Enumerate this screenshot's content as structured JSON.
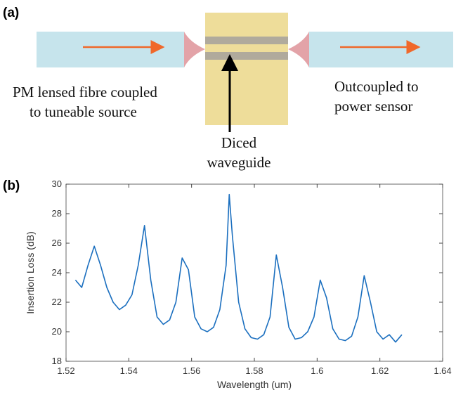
{
  "diagram": {
    "panel_label": "(a)",
    "source_label": [
      "PM lensed fibre coupled",
      "to tuneable source"
    ],
    "sensor_label": [
      "Outcoupled to",
      "power sensor"
    ],
    "waveguide_label": [
      "Diced",
      "waveguide"
    ]
  },
  "chart_data": {
    "type": "line",
    "panel_label": "(b)",
    "x_label": "Wavelength (um)",
    "y_label": "Insertion Loss (dB)",
    "xlim": [
      1.52,
      1.64
    ],
    "xticks": [
      1.52,
      1.54,
      1.56,
      1.58,
      1.6,
      1.62,
      1.64
    ],
    "ylim": [
      18,
      30
    ],
    "yticks": [
      18,
      20,
      22,
      24,
      26,
      28,
      30
    ],
    "color": "#1b6fbf",
    "x": [
      1.523,
      1.525,
      1.527,
      1.529,
      1.531,
      1.533,
      1.535,
      1.537,
      1.539,
      1.541,
      1.543,
      1.545,
      1.547,
      1.549,
      1.551,
      1.553,
      1.555,
      1.557,
      1.559,
      1.561,
      1.563,
      1.565,
      1.567,
      1.569,
      1.571,
      1.572,
      1.573,
      1.575,
      1.577,
      1.579,
      1.581,
      1.583,
      1.585,
      1.587,
      1.589,
      1.591,
      1.593,
      1.595,
      1.597,
      1.599,
      1.601,
      1.603,
      1.605,
      1.607,
      1.609,
      1.611,
      1.613,
      1.615,
      1.617,
      1.619,
      1.621,
      1.623,
      1.625,
      1.627
    ],
    "values": [
      23.5,
      23,
      24.5,
      25.8,
      24.5,
      23,
      22,
      21.5,
      21.8,
      22.5,
      24.5,
      27.2,
      23.5,
      21,
      20.5,
      20.8,
      22,
      25,
      24.2,
      21,
      20.2,
      20,
      20.3,
      21.5,
      24.5,
      29.3,
      26.5,
      22,
      20.2,
      19.6,
      19.5,
      19.8,
      21,
      25.2,
      23,
      20.3,
      19.5,
      19.6,
      20,
      21,
      23.5,
      22.3,
      20.2,
      19.5,
      19.4,
      19.7,
      21,
      23.8,
      22,
      20,
      19.5,
      19.8,
      19.3,
      19.8
    ]
  }
}
